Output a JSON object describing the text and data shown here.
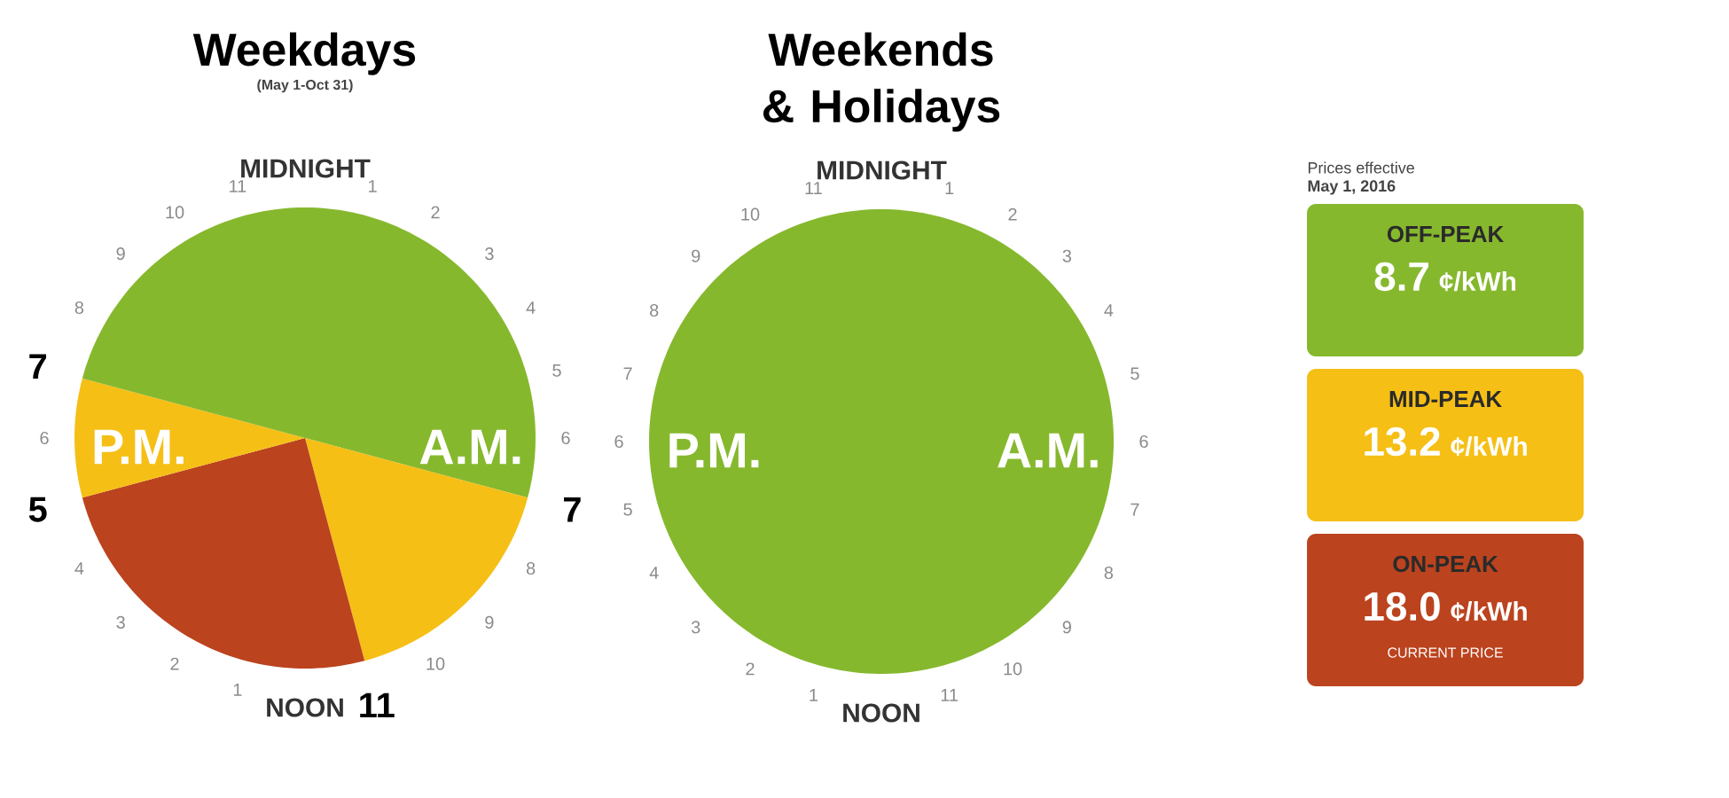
{
  "chart_data": [
    {
      "type": "pie",
      "title": "Weekdays",
      "subtitle": "(May 1-Oct 31)",
      "categories": [
        null,
        null,
        null,
        null,
        null
      ],
      "values": [
        29.17,
        16.67,
        25,
        8.33,
        20.83
      ],
      "colors": [
        "#86b82e",
        "#f5bf16",
        "#bb431e",
        "#f5bf16",
        "#86b82e"
      ],
      "annotations": [
        "MIDNIGHT",
        "1",
        "2",
        "3",
        "4",
        "5",
        "6",
        "7",
        "8",
        "9",
        "10",
        "11",
        "NOON",
        "1",
        "2",
        "3",
        "4",
        "5",
        "6",
        "7",
        "8",
        "9",
        "10",
        "11",
        "A.M.",
        "P.M."
      ]
    },
    {
      "type": "pie",
      "title": "Weekends & Holidays",
      "categories": [
        null
      ],
      "values": [
        100
      ],
      "colors": [
        "#86b82e"
      ],
      "annotations": [
        "MIDNIGHT",
        "1",
        "2",
        "3",
        "4",
        "5",
        "6",
        "7",
        "8",
        "9",
        "10",
        "11",
        "NOON",
        "1",
        "2",
        "3",
        "4",
        "5",
        "6",
        "7",
        "8",
        "9",
        "10",
        "11",
        "A.M.",
        "P.M."
      ]
    },
    {
      "type": "other",
      "title": "Prices effective",
      "subtitle": "May 1, 2016",
      "categories": [
        "OFF-PEAK",
        "MID-PEAK",
        "ON-PEAK"
      ],
      "values": [
        8.7,
        13.2,
        18.0
      ],
      "value_labels": [
        "8.7",
        "13.2",
        "18.0"
      ],
      "colors": [
        "#86b82e",
        "#f5bf16",
        "#bb431e"
      ],
      "data_labels": true,
      "annotations": [
        "¢/kWh",
        {
          "text": "CURRENT PRICE",
          "x": "ON-PEAK"
        }
      ]
    }
  ]
}
